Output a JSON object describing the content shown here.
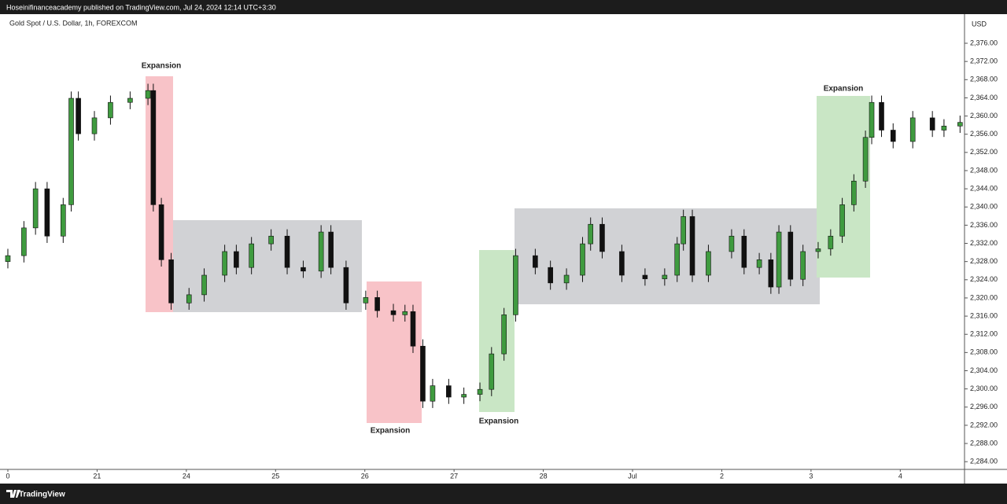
{
  "header": {
    "text": "Hoseinifinanceacademy published on TradingView.com, Jul 24, 2024 12:14 UTC+3:30"
  },
  "chart_data": {
    "type": "candlestick",
    "title": "Gold Spot / U.S. Dollar, 1h, FOREXCOM",
    "y_axis_label": "USD",
    "up_color": "#3f9b3f",
    "down_color": "#111111",
    "grid": false,
    "x": [
      0,
      0.18,
      0.31,
      0.44,
      0.62,
      0.71,
      0.79,
      0.97,
      1.15,
      1.37,
      1.57,
      1.63,
      1.72,
      1.83,
      2.03,
      2.2,
      2.43,
      2.56,
      2.73,
      2.95,
      3.13,
      3.31,
      3.51,
      3.62,
      3.79,
      4.01,
      4.14,
      4.32,
      4.45,
      4.54,
      4.65,
      4.76,
      4.94,
      5.11,
      5.29,
      5.42,
      5.56,
      5.69,
      5.91,
      6.08,
      6.26,
      6.44,
      6.53,
      6.66,
      6.88,
      7.14,
      7.36,
      7.5,
      7.57,
      7.67,
      7.85,
      8.11,
      8.25,
      8.42,
      8.55,
      8.64,
      8.77,
      8.91,
      9.08,
      9.22,
      9.35,
      9.48,
      9.61,
      9.68,
      9.79,
      9.92,
      10.14,
      10.36,
      10.49,
      10.67
    ],
    "open": [
      2328.0,
      2329.3,
      2335.4,
      2344.0,
      2333.6,
      2340.5,
      2363.9,
      2356.1,
      2359.6,
      2363.0,
      2363.9,
      2365.6,
      2340.5,
      2328.4,
      2318.9,
      2320.7,
      2325.0,
      2330.2,
      2326.7,
      2331.9,
      2333.6,
      2326.7,
      2325.9,
      2334.5,
      2326.7,
      2318.9,
      2320.1,
      2317.2,
      2316.3,
      2317.0,
      2309.4,
      2297.3,
      2300.7,
      2298.2,
      2298.8,
      2299.9,
      2307.7,
      2316.3,
      2329.3,
      2326.7,
      2323.3,
      2325.0,
      2331.9,
      2336.2,
      2330.2,
      2325.0,
      2324.2,
      2325.0,
      2331.9,
      2337.9,
      2325.0,
      2330.2,
      2333.6,
      2326.7,
      2328.4,
      2322.4,
      2334.5,
      2324.1,
      2330.2,
      2330.8,
      2333.6,
      2340.5,
      2345.7,
      2355.3,
      2363.0,
      2356.9,
      2354.4,
      2359.6,
      2356.9,
      2357.8
    ],
    "high": [
      2330.8,
      2336.9,
      2345.5,
      2345.5,
      2342.0,
      2365.4,
      2365.4,
      2361.1,
      2364.5,
      2365.4,
      2367.1,
      2367.1,
      2342.0,
      2329.9,
      2322.2,
      2326.5,
      2331.7,
      2331.7,
      2333.4,
      2335.1,
      2335.1,
      2328.2,
      2336.0,
      2336.0,
      2328.2,
      2321.6,
      2321.6,
      2318.7,
      2318.5,
      2318.5,
      2310.9,
      2302.2,
      2302.2,
      2300.3,
      2301.4,
      2309.2,
      2317.8,
      2330.8,
      2330.8,
      2328.2,
      2326.5,
      2333.4,
      2337.7,
      2337.7,
      2331.7,
      2326.5,
      2326.5,
      2333.4,
      2339.4,
      2339.4,
      2331.7,
      2335.1,
      2335.1,
      2329.9,
      2329.9,
      2336.0,
      2336.0,
      2331.7,
      2332.3,
      2335.1,
      2342.0,
      2347.2,
      2356.8,
      2364.5,
      2364.5,
      2358.4,
      2361.1,
      2361.1,
      2359.3,
      2360.1
    ],
    "low": [
      2326.5,
      2327.8,
      2333.9,
      2332.1,
      2332.1,
      2339.0,
      2354.6,
      2354.6,
      2358.1,
      2361.5,
      2362.4,
      2339.0,
      2326.9,
      2317.4,
      2317.4,
      2319.2,
      2323.5,
      2325.2,
      2325.2,
      2330.4,
      2325.2,
      2324.4,
      2324.4,
      2325.2,
      2317.4,
      2317.4,
      2315.7,
      2314.8,
      2314.8,
      2307.9,
      2295.8,
      2295.8,
      2296.7,
      2296.7,
      2297.3,
      2298.4,
      2306.2,
      2314.8,
      2325.2,
      2321.8,
      2321.8,
      2323.5,
      2330.4,
      2328.7,
      2323.5,
      2322.7,
      2322.7,
      2323.5,
      2330.4,
      2323.5,
      2323.5,
      2328.7,
      2325.2,
      2325.2,
      2320.9,
      2320.9,
      2322.6,
      2322.6,
      2328.7,
      2329.3,
      2332.1,
      2339.0,
      2344.2,
      2353.8,
      2355.4,
      2352.9,
      2352.9,
      2355.4,
      2355.4,
      2356.3
    ],
    "close": [
      2329.3,
      2335.4,
      2344.0,
      2333.6,
      2340.5,
      2363.9,
      2356.1,
      2359.6,
      2363.0,
      2363.9,
      2365.6,
      2340.5,
      2328.4,
      2318.9,
      2320.7,
      2325.0,
      2330.2,
      2326.7,
      2331.9,
      2333.6,
      2326.7,
      2325.9,
      2334.5,
      2326.7,
      2318.9,
      2320.1,
      2317.2,
      2316.3,
      2317.0,
      2309.4,
      2297.3,
      2300.7,
      2298.2,
      2298.8,
      2299.9,
      2307.7,
      2316.3,
      2329.3,
      2326.7,
      2323.3,
      2325.0,
      2331.9,
      2336.2,
      2330.2,
      2325.0,
      2324.2,
      2325.0,
      2331.9,
      2337.9,
      2325.0,
      2330.2,
      2333.6,
      2326.7,
      2328.4,
      2322.4,
      2334.5,
      2324.1,
      2330.2,
      2330.8,
      2333.6,
      2340.5,
      2345.7,
      2355.3,
      2363.0,
      2356.9,
      2354.4,
      2359.6,
      2356.9,
      2357.8,
      2358.6
    ],
    "xlim": [
      -0.088,
      10.72
    ],
    "xticks": [
      {
        "value": 0,
        "label": "0"
      },
      {
        "value": 1,
        "label": "21"
      },
      {
        "value": 2,
        "label": "24"
      },
      {
        "value": 3,
        "label": "25"
      },
      {
        "value": 4,
        "label": "26"
      },
      {
        "value": 5,
        "label": "27"
      },
      {
        "value": 6,
        "label": "28"
      },
      {
        "value": 7,
        "label": "Jul"
      },
      {
        "value": 8,
        "label": "2"
      },
      {
        "value": 9,
        "label": "3"
      },
      {
        "value": 10,
        "label": "4"
      }
    ],
    "ylim": [
      2282.3,
      2382.4
    ],
    "yticks": [
      {
        "value": 2284,
        "label": "2,284.00"
      },
      {
        "value": 2288,
        "label": "2,288.00"
      },
      {
        "value": 2292,
        "label": "2,292.00"
      },
      {
        "value": 2296,
        "label": "2,296.00"
      },
      {
        "value": 2300,
        "label": "2,300.00"
      },
      {
        "value": 2304,
        "label": "2,304.00"
      },
      {
        "value": 2308,
        "label": "2,308.00"
      },
      {
        "value": 2312,
        "label": "2,312.00"
      },
      {
        "value": 2316,
        "label": "2,316.00"
      },
      {
        "value": 2320,
        "label": "2,320.00"
      },
      {
        "value": 2324,
        "label": "2,324.00"
      },
      {
        "value": 2328,
        "label": "2,328.00"
      },
      {
        "value": 2332,
        "label": "2,332.00"
      },
      {
        "value": 2336,
        "label": "2,336.00"
      },
      {
        "value": 2340,
        "label": "2,340.00"
      },
      {
        "value": 2344,
        "label": "2,344.00"
      },
      {
        "value": 2348,
        "label": "2,348.00"
      },
      {
        "value": 2352,
        "label": "2,352.00"
      },
      {
        "value": 2356,
        "label": "2,356.00"
      },
      {
        "value": 2360,
        "label": "2,360.00"
      },
      {
        "value": 2364,
        "label": "2,364.00"
      },
      {
        "value": 2368,
        "label": "2,368.00"
      },
      {
        "value": 2372,
        "label": "2,372.00"
      },
      {
        "value": 2376,
        "label": "2,376.00"
      }
    ]
  },
  "annotations": [
    "Expansion",
    "Expansion",
    "Expansion",
    "Expansion"
  ],
  "footer": {
    "brand": "TradingView"
  }
}
